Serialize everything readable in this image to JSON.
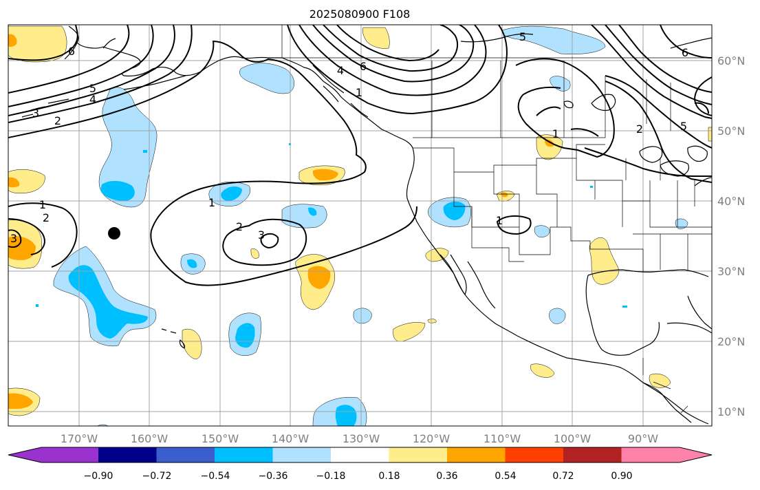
{
  "title": "2025080900 F108",
  "map": {
    "lon_labels": [
      "170°W",
      "160°W",
      "150°W",
      "140°W",
      "130°W",
      "120°W",
      "110°W",
      "100°W",
      "90°W"
    ],
    "lat_labels": [
      "60°N",
      "50°N",
      "40°N",
      "30°N",
      "20°N",
      "10°N"
    ],
    "contour_labels": [
      "6",
      "5",
      "4",
      "3",
      "2",
      "1",
      "1",
      "2",
      "3",
      "1",
      "2",
      "3",
      "5",
      "6",
      "6",
      "5",
      "2",
      "1",
      "1",
      "4"
    ],
    "point_marker": "filled-circle"
  },
  "colorbar": {
    "tick_labels": [
      "−0.90",
      "−0.72",
      "−0.54",
      "−0.36",
      "−0.18",
      "0.18",
      "0.36",
      "0.54",
      "0.72",
      "0.90"
    ],
    "colors": [
      "#9a32cd",
      "#00008b",
      "#3a5fcd",
      "#00bfff",
      "#b0e2ff",
      "#ffffff",
      "#ffec8b",
      "#ffa500",
      "#ff4000",
      "#b22222",
      "#ff82ab"
    ]
  }
}
